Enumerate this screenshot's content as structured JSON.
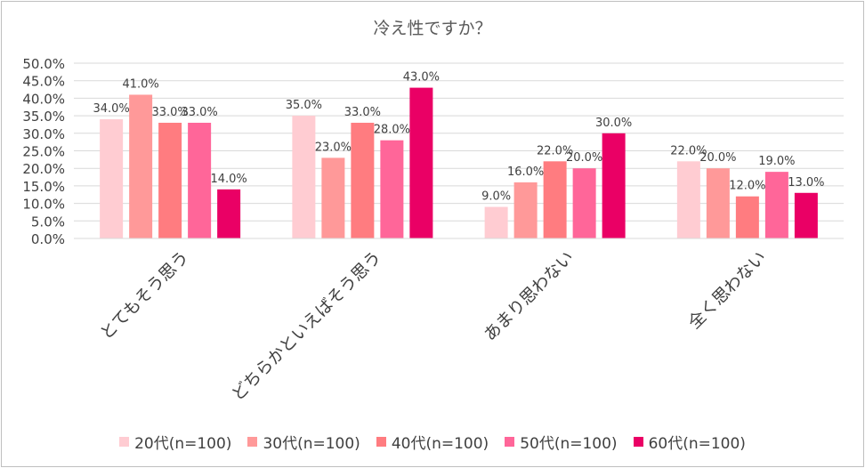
{
  "chart_data": {
    "type": "bar",
    "title": "冷え性ですか？",
    "categories": [
      "とてもそう思う",
      "どちらかといえばそう思う",
      "あまり思わない",
      "全く思わない"
    ],
    "series": [
      {
        "name": "20代(n=100)",
        "color": "#ffccd2",
        "values": [
          34.0,
          35.0,
          9.0,
          22.0
        ],
        "labels": [
          "34.0%",
          "35.0%",
          "9.0%",
          "22.0%"
        ]
      },
      {
        "name": "30代(n=100)",
        "color": "#ff9999",
        "values": [
          41.0,
          23.0,
          16.0,
          20.0
        ],
        "labels": [
          "41.0%",
          "23.0%",
          "16.0%",
          "20.0%"
        ]
      },
      {
        "name": "40代(n=100)",
        "color": "#ff7c80",
        "values": [
          33.0,
          33.0,
          22.0,
          12.0
        ],
        "labels": [
          "33.0%",
          "33.0%",
          "22.0%",
          "12.0%"
        ]
      },
      {
        "name": "50代(n=100)",
        "color": "#ff6699",
        "values": [
          33.0,
          28.0,
          20.0,
          19.0
        ],
        "labels": [
          "33.0%",
          "28.0%",
          "20.0%",
          "19.0%"
        ]
      },
      {
        "name": "60代(n=100)",
        "color": "#ea0065",
        "values": [
          14.0,
          43.0,
          30.0,
          13.0
        ],
        "labels": [
          "14.0%",
          "43.0%",
          "30.0%",
          "13.0%"
        ]
      }
    ],
    "ylim": [
      0,
      50
    ],
    "yticks": [
      "0.0%",
      "5.0%",
      "10.0%",
      "15.0%",
      "20.0%",
      "25.0%",
      "30.0%",
      "35.0%",
      "40.0%",
      "45.0%",
      "50.0%"
    ],
    "grid": true,
    "legend": "bottom"
  }
}
